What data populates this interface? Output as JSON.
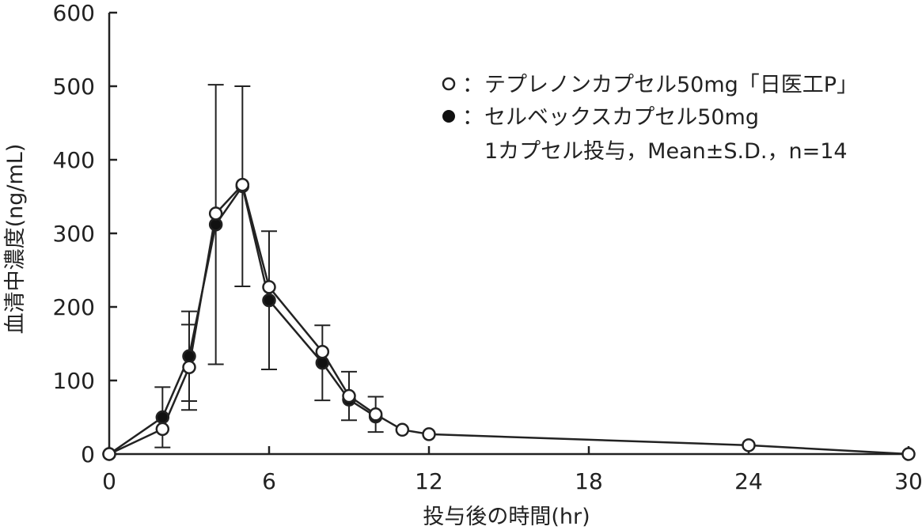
{
  "chart_data": {
    "type": "line",
    "xlabel": "投与後の時間(hr)",
    "ylabel": "血清中濃度(ng/mL)",
    "xlim": [
      0,
      30
    ],
    "ylim": [
      0,
      600
    ],
    "x_ticks": [
      "0",
      "6",
      "12",
      "18",
      "24",
      "30"
    ],
    "y_ticks": [
      "0",
      "100",
      "200",
      "300",
      "400",
      "500",
      "600"
    ],
    "grid": false,
    "legend_position": "top-right",
    "series": [
      {
        "name": "テプレノンカプセル50mg「日医工P」",
        "marker": "open-circle",
        "x": [
          0,
          2,
          3,
          4,
          5,
          6,
          8,
          9,
          10,
          11,
          12,
          24,
          30
        ],
        "y": [
          0,
          34,
          118,
          327,
          366,
          227,
          139,
          79,
          54,
          33,
          27,
          12,
          0
        ],
        "error": [
          0,
          0,
          58,
          0,
          0,
          0,
          0,
          33,
          24,
          0,
          0,
          0,
          0
        ]
      },
      {
        "name": "セルベックスカプセル50mg",
        "marker": "filled-circle",
        "x": [
          0,
          2,
          3,
          4,
          5,
          6,
          8,
          9,
          10
        ],
        "y": [
          0,
          50,
          133,
          312,
          364,
          209,
          124,
          74,
          51
        ],
        "error": [
          0,
          41,
          61,
          190,
          136,
          94,
          51,
          0,
          0
        ]
      }
    ],
    "legend": {
      "marker_open": "○",
      "marker_filled": "●",
      "separator": "：",
      "note": "1カプセル投与，Mean±S.D.，n=14"
    },
    "colors": {
      "line": "#222222",
      "open_fill": "#ffffff",
      "filled_fill": "#111111"
    }
  }
}
